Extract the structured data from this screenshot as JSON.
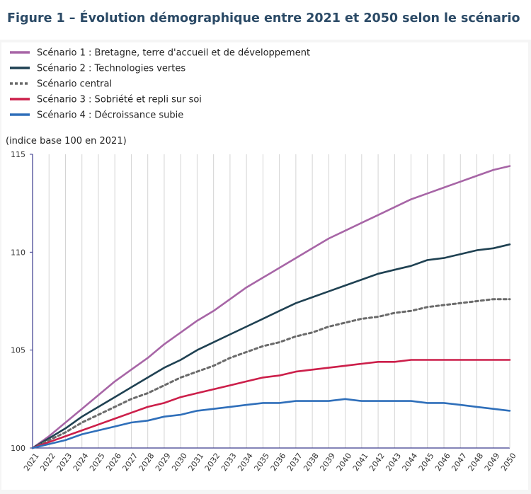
{
  "figure": {
    "title": "Figure 1 – Évolution démographique entre 2021 et 2050 selon le scénario"
  },
  "chart_data": {
    "type": "line",
    "title": "Figure 1 – Évolution démographique entre 2021 et 2050 selon le scénario",
    "ylabel": "(indice base 100 en 2021)",
    "xlabel": "",
    "ylim": [
      100,
      115
    ],
    "yticks": [
      "100",
      "105",
      "110",
      "115"
    ],
    "ytick_values": [
      100,
      105,
      110,
      115
    ],
    "grid": "vertical",
    "legend_position": "top-left",
    "x": [
      "2021",
      "2022",
      "2023",
      "2024",
      "2025",
      "2026",
      "2027",
      "2028",
      "2029",
      "2030",
      "2031",
      "2032",
      "2033",
      "2034",
      "2035",
      "2036",
      "2037",
      "2038",
      "2039",
      "2040",
      "2041",
      "2042",
      "2043",
      "2044",
      "2045",
      "2046",
      "2047",
      "2048",
      "2049",
      "2050"
    ],
    "series": [
      {
        "name": "Scénario 1 : Bretagne, terre d'accueil et de développement",
        "color": "#a765a6",
        "dash": "solid",
        "values": [
          100,
          100.6,
          101.3,
          102.0,
          102.7,
          103.4,
          104.0,
          104.6,
          105.3,
          105.9,
          106.5,
          107.0,
          107.6,
          108.2,
          108.7,
          109.2,
          109.7,
          110.2,
          110.7,
          111.1,
          111.5,
          111.9,
          112.3,
          112.7,
          113.0,
          113.3,
          113.6,
          113.9,
          114.2,
          114.4
        ]
      },
      {
        "name": "Scénario 2 : Technologies vertes",
        "color": "#1f4152",
        "dash": "solid",
        "values": [
          100,
          100.5,
          101.0,
          101.6,
          102.1,
          102.6,
          103.1,
          103.6,
          104.1,
          104.5,
          105.0,
          105.4,
          105.8,
          106.2,
          106.6,
          107.0,
          107.4,
          107.7,
          108.0,
          108.3,
          108.6,
          108.9,
          109.1,
          109.3,
          109.6,
          109.7,
          109.9,
          110.1,
          110.2,
          110.4
        ]
      },
      {
        "name": "Scénario central",
        "color": "#6a6a6a",
        "dash": "dotted",
        "values": [
          100,
          100.4,
          100.8,
          101.3,
          101.7,
          102.1,
          102.5,
          102.8,
          103.2,
          103.6,
          103.9,
          104.2,
          104.6,
          104.9,
          105.2,
          105.4,
          105.7,
          105.9,
          106.2,
          106.4,
          106.6,
          106.7,
          106.9,
          107.0,
          107.2,
          107.3,
          107.4,
          107.5,
          107.6,
          107.6
        ]
      },
      {
        "name": "Scénario 3 : Sobriété et repli sur soi",
        "color": "#cc1f4a",
        "dash": "solid",
        "values": [
          100,
          100.3,
          100.6,
          100.9,
          101.2,
          101.5,
          101.8,
          102.1,
          102.3,
          102.6,
          102.8,
          103.0,
          103.2,
          103.4,
          103.6,
          103.7,
          103.9,
          104.0,
          104.1,
          104.2,
          104.3,
          104.4,
          104.4,
          104.5,
          104.5,
          104.5,
          104.5,
          104.5,
          104.5,
          104.5
        ]
      },
      {
        "name": "Scénario 4 : Décroissance subie",
        "color": "#2f6fba",
        "dash": "solid",
        "values": [
          100,
          100.2,
          100.4,
          100.7,
          100.9,
          101.1,
          101.3,
          101.4,
          101.6,
          101.7,
          101.9,
          102.0,
          102.1,
          102.2,
          102.3,
          102.3,
          102.4,
          102.4,
          102.4,
          102.5,
          102.4,
          102.4,
          102.4,
          102.4,
          102.3,
          102.3,
          102.2,
          102.1,
          102.0,
          101.9
        ]
      }
    ]
  }
}
